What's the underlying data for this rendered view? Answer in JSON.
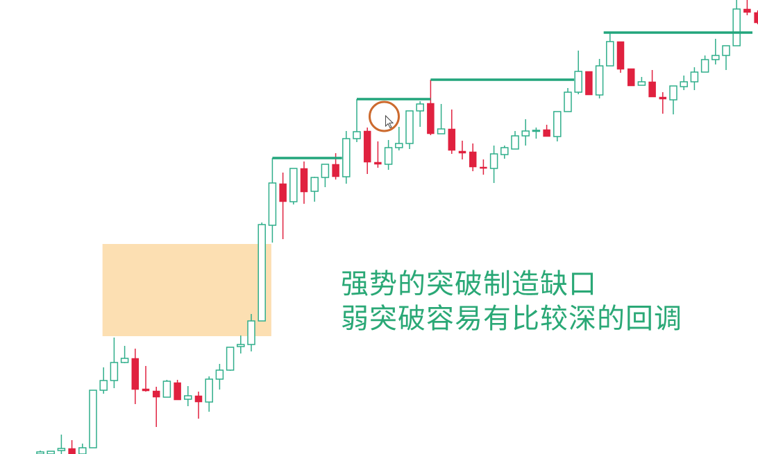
{
  "chart_data": {
    "type": "candlestick",
    "title": "",
    "xlabel": "",
    "ylabel": "",
    "axes_visible": false,
    "grid": false,
    "ylim": [
      0,
      655
    ],
    "colors": {
      "up": "#2fae8a",
      "down": "#e0213f",
      "level_line": "#22a57c",
      "zone": "#fcdfb2",
      "highlight_circle": "#cc6a2e",
      "caption": "#2aa876"
    },
    "candles": [
      {
        "o": 0,
        "h": 5,
        "l": 0,
        "c": 3
      },
      {
        "o": 0,
        "h": 4,
        "l": 0,
        "c": 4
      },
      {
        "o": 5,
        "h": 28,
        "l": 0,
        "c": 8
      },
      {
        "o": 8,
        "h": 20,
        "l": 0,
        "c": 0
      },
      {
        "o": 0,
        "h": 15,
        "l": 0,
        "c": 9
      },
      {
        "o": 9,
        "h": 92,
        "l": 9,
        "c": 92
      },
      {
        "o": 92,
        "h": 125,
        "l": 87,
        "c": 106
      },
      {
        "o": 106,
        "h": 168,
        "l": 95,
        "c": 132
      },
      {
        "o": 132,
        "h": 156,
        "l": 131,
        "c": 138
      },
      {
        "o": 138,
        "h": 152,
        "l": 72,
        "c": 93
      },
      {
        "o": 94,
        "h": 127,
        "l": 90,
        "c": 91
      },
      {
        "o": 91,
        "h": 97,
        "l": 39,
        "c": 82
      },
      {
        "o": 82,
        "h": 107,
        "l": 82,
        "c": 105
      },
      {
        "o": 103,
        "h": 107,
        "l": 78,
        "c": 78
      },
      {
        "o": 79,
        "h": 98,
        "l": 69,
        "c": 84
      },
      {
        "o": 84,
        "h": 90,
        "l": 51,
        "c": 75
      },
      {
        "o": 75,
        "h": 112,
        "l": 61,
        "c": 108
      },
      {
        "o": 108,
        "h": 130,
        "l": 93,
        "c": 121
      },
      {
        "o": 121,
        "h": 154,
        "l": 120,
        "c": 154
      },
      {
        "o": 155,
        "h": 171,
        "l": 145,
        "c": 158
      },
      {
        "o": 158,
        "h": 202,
        "l": 148,
        "c": 192
      },
      {
        "o": 192,
        "h": 334,
        "l": 192,
        "c": 331
      },
      {
        "o": 330,
        "h": 427,
        "l": 305,
        "c": 391
      },
      {
        "o": 390,
        "h": 406,
        "l": 310,
        "c": 364
      },
      {
        "o": 364,
        "h": 412,
        "l": 360,
        "c": 412
      },
      {
        "o": 412,
        "h": 422,
        "l": 361,
        "c": 378
      },
      {
        "o": 379,
        "h": 400,
        "l": 364,
        "c": 399
      },
      {
        "o": 399,
        "h": 418,
        "l": 385,
        "c": 418
      },
      {
        "o": 418,
        "h": 434,
        "l": 396,
        "c": 400
      },
      {
        "o": 400,
        "h": 466,
        "l": 390,
        "c": 455
      },
      {
        "o": 455,
        "h": 512,
        "l": 450,
        "c": 465
      },
      {
        "o": 466,
        "h": 471,
        "l": 404,
        "c": 421
      },
      {
        "o": 421,
        "h": 451,
        "l": 413,
        "c": 418
      },
      {
        "o": 418,
        "h": 453,
        "l": 410,
        "c": 442
      },
      {
        "o": 442,
        "h": 472,
        "l": 438,
        "c": 448
      },
      {
        "o": 448,
        "h": 495,
        "l": 440,
        "c": 495
      },
      {
        "o": 495,
        "h": 509,
        "l": 472,
        "c": 505
      },
      {
        "o": 506,
        "h": 540,
        "l": 460,
        "c": 462
      },
      {
        "o": 462,
        "h": 505,
        "l": 462,
        "c": 469
      },
      {
        "o": 469,
        "h": 497,
        "l": 433,
        "c": 438
      },
      {
        "o": 437,
        "h": 452,
        "l": 425,
        "c": 434
      },
      {
        "o": 436,
        "h": 448,
        "l": 408,
        "c": 414
      },
      {
        "o": 414,
        "h": 425,
        "l": 403,
        "c": 412
      },
      {
        "o": 412,
        "h": 445,
        "l": 391,
        "c": 433
      },
      {
        "o": 432,
        "h": 445,
        "l": 426,
        "c": 442
      },
      {
        "o": 440,
        "h": 466,
        "l": 440,
        "c": 459
      },
      {
        "o": 459,
        "h": 483,
        "l": 445,
        "c": 466
      },
      {
        "o": 466,
        "h": 471,
        "l": 455,
        "c": 467
      },
      {
        "o": 468,
        "h": 475,
        "l": 458,
        "c": 458
      },
      {
        "o": 458,
        "h": 494,
        "l": 451,
        "c": 494
      },
      {
        "o": 494,
        "h": 528,
        "l": 494,
        "c": 522
      },
      {
        "o": 522,
        "h": 582,
        "l": 519,
        "c": 552
      },
      {
        "o": 552,
        "h": 552,
        "l": 518,
        "c": 518
      },
      {
        "o": 518,
        "h": 570,
        "l": 513,
        "c": 560
      },
      {
        "o": 560,
        "h": 607,
        "l": 560,
        "c": 595
      },
      {
        "o": 595,
        "h": 595,
        "l": 550,
        "c": 555
      },
      {
        "o": 556,
        "h": 556,
        "l": 531,
        "c": 531
      },
      {
        "o": 532,
        "h": 544,
        "l": 532,
        "c": 537
      },
      {
        "o": 537,
        "h": 554,
        "l": 515,
        "c": 515
      },
      {
        "o": 515,
        "h": 522,
        "l": 491,
        "c": 512
      },
      {
        "o": 511,
        "h": 531,
        "l": 490,
        "c": 531
      },
      {
        "o": 530,
        "h": 546,
        "l": 525,
        "c": 537
      },
      {
        "o": 537,
        "h": 558,
        "l": 525,
        "c": 551
      },
      {
        "o": 551,
        "h": 575,
        "l": 551,
        "c": 569
      },
      {
        "o": 569,
        "h": 599,
        "l": 562,
        "c": 575
      },
      {
        "o": 575,
        "h": 589,
        "l": 554,
        "c": 589
      },
      {
        "o": 589,
        "h": 660,
        "l": 589,
        "c": 642
      },
      {
        "o": 642,
        "h": 660,
        "l": 633,
        "c": 637
      },
      {
        "o": 637,
        "h": 640,
        "l": 620,
        "c": 622
      }
    ],
    "levels": [
      {
        "price": 427,
        "from": 22,
        "to": 28.6
      },
      {
        "price": 512,
        "from": 30,
        "to": 37
      },
      {
        "price": 540,
        "from": 37,
        "to": 50.6
      },
      {
        "price": 608,
        "from": 53.4,
        "to": 67.5
      }
    ],
    "zone": {
      "from": 5.9,
      "to": 21.9,
      "low": 170,
      "high": 303
    },
    "highlight": {
      "candle": 32.6,
      "price": 487
    },
    "annotations": [
      "强势的突破制造缺口",
      "弱突破容易有比较深的回调"
    ]
  }
}
